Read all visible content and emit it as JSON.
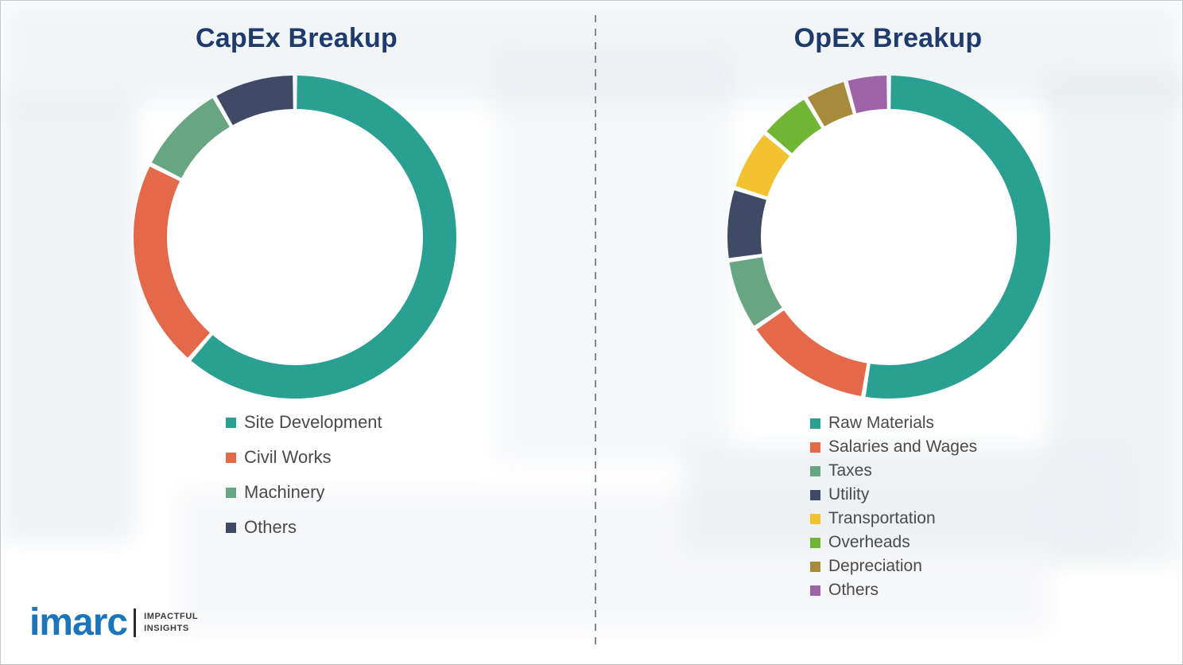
{
  "chart_data": [
    {
      "type": "pie",
      "donut": true,
      "title": "CapEx Breakup",
      "categories": [
        "Site Development",
        "Civil Works",
        "Machinery",
        "Others"
      ],
      "values": [
        62,
        21,
        9,
        8
      ],
      "colors": [
        "#2aa093",
        "#e4694b",
        "#68a583",
        "#404a67"
      ],
      "legend_position": "bottom-left",
      "data_labels": false
    },
    {
      "type": "pie",
      "donut": true,
      "title": "OpEx Breakup",
      "categories": [
        "Raw Materials",
        "Salaries and Wages",
        "Taxes",
        "Utility",
        "Transportation",
        "Overheads",
        "Depreciation",
        "Others"
      ],
      "values": [
        54,
        13,
        7,
        7,
        6,
        5,
        4,
        4
      ],
      "colors": [
        "#2aa093",
        "#e4694b",
        "#68a583",
        "#404a67",
        "#f3c231",
        "#70b533",
        "#a78a3b",
        "#9d63a6"
      ],
      "legend_position": "bottom-left",
      "data_labels": false
    }
  ],
  "logo": {
    "brand": "imarc",
    "tagline_line1": "IMPACTFUL",
    "tagline_line2": "INSIGHTS"
  },
  "style": {
    "title_color": "#1f3b6d",
    "legend_text_color": "#4a4a4a",
    "brand_blue": "#1b75bb",
    "divider_color": "#80888f"
  }
}
